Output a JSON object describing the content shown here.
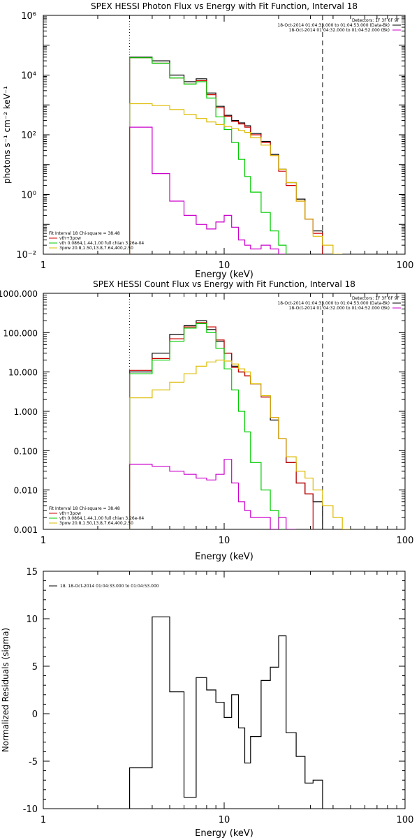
{
  "chart_data": [
    {
      "type": "line",
      "title": "SPEX HESSI Photon Flux vs Energy with Fit Function, Interval 18",
      "xlabel": "Energy (keV)",
      "ylabel": "photons s⁻¹ cm⁻² keV⁻¹",
      "xscale": "log",
      "yscale": "log",
      "xlim": [
        1,
        100
      ],
      "ylim": [
        0.01,
        1000000
      ],
      "x_tick_labels": [
        "1",
        "10",
        "100"
      ],
      "y_tick_labels": [
        "10⁻²",
        "10⁰",
        "10²",
        "10⁴",
        "10⁶"
      ],
      "legend_top": {
        "header": "Detectors: 1F 3F 6F 9F",
        "entries": [
          {
            "text": "18-Oct-2014 01:04:33.000 to 01:04:53.000 (Data-Bk)",
            "color": "#000000"
          },
          {
            "text": "18-Oct-2014 01:04:32.000 to 01:04:52.000 (Bk)",
            "color": "#cc00cc"
          }
        ]
      },
      "legend_bottom": {
        "header": "Fit Interval 18   Chi-square = 38.48",
        "entries": [
          {
            "text": "vth+3pow",
            "color": "#cc0000"
          },
          {
            "text": "vth 0.0864,1.44,1.00  full chian 3.26e-04",
            "color": "#00cc00"
          },
          {
            "text": "3pow 20.8,1.50,13.8,7.64,400,2.50",
            "color": "#ddbb00"
          }
        ]
      },
      "dotted_x": 3,
      "dashed_x": 35,
      "edges": [
        3,
        4,
        5,
        6,
        7,
        8,
        9,
        10,
        11,
        12,
        13,
        14,
        16,
        18,
        20,
        22,
        25,
        28,
        31,
        35,
        40,
        45
      ],
      "series": [
        {
          "color": "#000000",
          "values": [
            40000,
            30000,
            10000,
            6000,
            7500,
            2500,
            900,
            450,
            300,
            250,
            200,
            110,
            60,
            22,
            7,
            2.5,
            0.7,
            0.15,
            0.06,
            null,
            null
          ]
        },
        {
          "color": "#cc0000",
          "values": [
            38000,
            25000,
            8000,
            5000,
            6500,
            2200,
            800,
            420,
            280,
            230,
            180,
            100,
            55,
            20,
            6,
            2.0,
            0.6,
            0.15,
            0.05,
            null,
            null
          ]
        },
        {
          "color": "#00cc00",
          "values": [
            38000,
            25000,
            8000,
            5000,
            6000,
            1700,
            400,
            150,
            55,
            15,
            4,
            1.2,
            0.25,
            0.06,
            0.02,
            null,
            null,
            null,
            null,
            null,
            null
          ]
        },
        {
          "color": "#ddbb00",
          "values": [
            1100,
            950,
            700,
            480,
            350,
            270,
            220,
            190,
            160,
            140,
            120,
            80,
            45,
            20,
            7,
            2.5,
            0.6,
            0.15,
            0.04,
            0.02,
            0.01
          ]
        },
        {
          "color": "#cc00cc",
          "values": [
            180,
            5,
            0.6,
            0.2,
            0.1,
            0.07,
            0.12,
            0.2,
            0.08,
            0.03,
            0.02,
            0.015,
            0.02,
            0.015,
            0.01,
            null,
            null,
            null,
            null,
            null,
            null
          ]
        }
      ]
    },
    {
      "type": "line",
      "title": "SPEX HESSI Count Flux vs Energy with Fit Function, Interval 18",
      "xlabel": "Energy (keV)",
      "ylabel": "",
      "xscale": "log",
      "yscale": "log",
      "xlim": [
        1,
        100
      ],
      "ylim": [
        0.001,
        1000
      ],
      "x_tick_labels": [
        "1",
        "10",
        "100"
      ],
      "y_tick_labels": [
        "0.001",
        "0.010",
        "0.100",
        "1.000",
        "10.000",
        "100.000",
        "1000.000"
      ],
      "legend_top": {
        "header": "Detectors: 1F 3F 6F 9F",
        "entries": [
          {
            "text": "18-Oct-2014 01:04:33.000 to 01:04:53.000 (Data-Bk)",
            "color": "#000000"
          },
          {
            "text": "18-Oct-2014 01:04:32.000 to 01:04:52.000 (Bk)",
            "color": "#cc00cc"
          }
        ]
      },
      "legend_bottom": {
        "header": "Fit Interval 18   Chi-square = 38.48",
        "entries": [
          {
            "text": "vth+3pow",
            "color": "#cc0000"
          },
          {
            "text": "vth 0.0864,1.44,1.00  full chian 3.26e-04",
            "color": "#00cc00"
          },
          {
            "text": "3pow 20.8,1.50,13.8,7.64,400,2.50",
            "color": "#ddbb00"
          }
        ]
      },
      "dotted_x": 3,
      "dashed_x": 35,
      "edges": [
        3,
        4,
        5,
        6,
        7,
        8,
        9,
        10,
        11,
        12,
        13,
        14,
        16,
        18,
        20,
        22,
        25,
        28,
        31,
        35,
        40,
        45,
        50
      ],
      "series": [
        {
          "color": "#000000",
          "values": [
            10,
            30,
            90,
            150,
            200,
            120,
            60,
            30,
            14,
            10,
            8,
            5,
            2.5,
            0.6,
            0.2,
            0.05,
            0.015,
            0.008,
            0.005,
            null,
            null,
            null
          ]
        },
        {
          "color": "#cc0000",
          "values": [
            11,
            22,
            70,
            140,
            180,
            140,
            65,
            30,
            13,
            10,
            8,
            5,
            2.3,
            0.7,
            0.2,
            0.05,
            0.015,
            0.008,
            null,
            null,
            null,
            null
          ]
        },
        {
          "color": "#00cc00",
          "values": [
            9,
            20,
            60,
            130,
            170,
            100,
            40,
            12,
            3.5,
            1,
            0.3,
            0.05,
            0.01,
            0.003,
            0.001,
            null,
            null,
            null,
            null,
            null,
            null,
            null
          ]
        },
        {
          "color": "#ddbb00",
          "values": [
            2.2,
            3.5,
            5.5,
            9,
            14,
            18,
            20,
            19,
            16,
            12,
            10,
            5,
            2.5,
            0.7,
            0.2,
            0.07,
            0.03,
            0.02,
            0.01,
            0.004,
            0.002,
            0.001
          ]
        },
        {
          "color": "#cc00cc",
          "values": [
            0.045,
            0.04,
            0.03,
            0.025,
            0.02,
            0.018,
            0.025,
            0.06,
            0.015,
            0.005,
            0.003,
            0.002,
            0.002,
            0.001,
            0.002,
            0.001,
            null,
            null,
            null,
            null,
            null,
            null
          ]
        }
      ]
    },
    {
      "type": "line",
      "title": "",
      "xlabel": "Energy (keV)",
      "ylabel": "Normalized Residuals (sigma)",
      "xscale": "log",
      "yscale": "linear",
      "xlim": [
        1,
        100
      ],
      "ylim": [
        -10,
        15
      ],
      "x_tick_labels": [
        "1",
        "10",
        "100"
      ],
      "y_tick_labels": [
        "-10",
        "-5",
        "0",
        "5",
        "10",
        "15"
      ],
      "legend_top": {
        "header": "",
        "entries": [
          {
            "text": "18. 18-Oct-2014 01:04:33.000 to 01:04:53.000",
            "color": "#000000"
          }
        ]
      },
      "edges": [
        3,
        4,
        5,
        6,
        7,
        8,
        9,
        10,
        11,
        12,
        13,
        14,
        16,
        18,
        20,
        22,
        25,
        28,
        31,
        35
      ],
      "series": [
        {
          "color": "#000000",
          "values": [
            -5.7,
            10.2,
            2.3,
            -8.8,
            3.8,
            2.5,
            1.2,
            -0.4,
            2.0,
            -1.5,
            -5.2,
            -2.4,
            3.5,
            4.9,
            8.2,
            -2.0,
            -4.5,
            -7.3,
            -7.0
          ]
        }
      ]
    }
  ]
}
